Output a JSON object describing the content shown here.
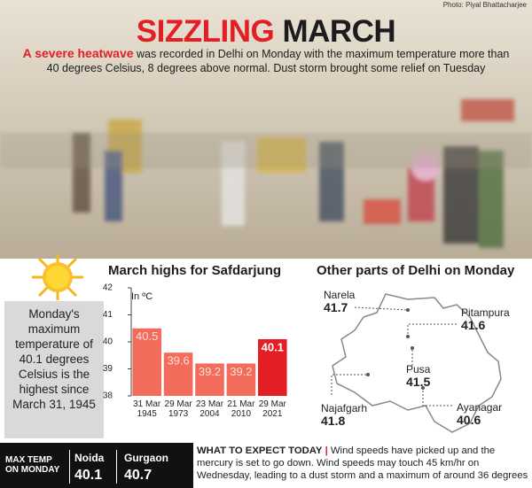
{
  "photo_credit": "Photo: Piyal Bhattacharjee",
  "header": {
    "title_1": "SIZZLING",
    "title_2": "MARCH",
    "lead_1": "A",
    "lead_highlight": "severe heatwave",
    "lead_2": "was recorded in Delhi on Monday with the maximum temperature more than 40 degrees Celsius, 8 degrees above normal. Dust storm brought some relief on Tuesday"
  },
  "sidebar": {
    "text": "Monday's maximum temperature of 40.1 degrees Celsius is the highest since March 31, 1945"
  },
  "chart_data": {
    "type": "bar",
    "title": "March highs for Safdarjung",
    "y_label": "In ºC",
    "categories": [
      "31 Mar 1945",
      "29 Mar 1973",
      "23 Mar 2004",
      "21 Mar 2010",
      "29 Mar 2021"
    ],
    "values": [
      40.5,
      39.6,
      39.2,
      39.2,
      40.1
    ],
    "colors": [
      "#f26b5b",
      "#f26b5b",
      "#f26b5b",
      "#f26b5b",
      "#e31e24"
    ],
    "ylim": [
      38,
      42
    ],
    "yticks": [
      38,
      39,
      40,
      41,
      42
    ],
    "grid": false
  },
  "map": {
    "title": "Other parts of Delhi on Monday",
    "places": [
      {
        "name": "Narela",
        "temp": 41.7
      },
      {
        "name": "Pitampura",
        "temp": 41.6
      },
      {
        "name": "Pusa",
        "temp": 41.5
      },
      {
        "name": "Najafgarh",
        "temp": 41.8
      },
      {
        "name": "Ayanagar",
        "temp": 40.6
      }
    ]
  },
  "footer": {
    "max_temp_label": "MAX TEMP ON MONDAY",
    "cities": [
      {
        "name": "Noida",
        "temp": 40.1
      },
      {
        "name": "Gurgaon",
        "temp": 40.7
      }
    ],
    "expect_heading": "WHAT TO EXPECT TODAY",
    "expect_text": "Wind speeds have picked up and the mercury is set to go down. Wind speeds may touch 45 km/hr on Wednesday, leading to a dust storm and a maximum of around 36 degrees"
  }
}
